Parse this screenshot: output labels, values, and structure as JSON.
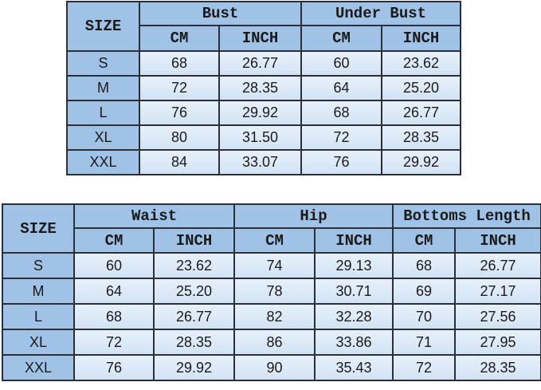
{
  "table1": {
    "size_label": "SIZE",
    "groups": [
      "Bust",
      "Under Bust"
    ],
    "units": [
      "CM",
      "INCH",
      "CM",
      "INCH"
    ],
    "rows": [
      {
        "size": "S",
        "values": [
          "68",
          "26.77",
          "60",
          "23.62"
        ]
      },
      {
        "size": "M",
        "values": [
          "72",
          "28.35",
          "64",
          "25.20"
        ]
      },
      {
        "size": "L",
        "values": [
          "76",
          "29.92",
          "68",
          "26.77"
        ]
      },
      {
        "size": "XL",
        "values": [
          "80",
          "31.50",
          "72",
          "28.35"
        ]
      },
      {
        "size": "XXL",
        "values": [
          "84",
          "33.07",
          "76",
          "29.92"
        ]
      }
    ]
  },
  "table2": {
    "size_label": "SIZE",
    "groups": [
      "Waist",
      "Hip",
      "Bottoms Length"
    ],
    "units": [
      "CM",
      "INCH",
      "CM",
      "INCH",
      "CM",
      "INCH"
    ],
    "rows": [
      {
        "size": "S",
        "values": [
          "60",
          "23.62",
          "74",
          "29.13",
          "68",
          "26.77"
        ]
      },
      {
        "size": "M",
        "values": [
          "64",
          "25.20",
          "78",
          "30.71",
          "69",
          "27.17"
        ]
      },
      {
        "size": "L",
        "values": [
          "68",
          "26.77",
          "82",
          "32.28",
          "70",
          "27.56"
        ]
      },
      {
        "size": "XL",
        "values": [
          "72",
          "28.35",
          "86",
          "33.86",
          "71",
          "27.95"
        ]
      },
      {
        "size": "XXL",
        "values": [
          "76",
          "29.92",
          "90",
          "35.43",
          "72",
          "28.35"
        ]
      }
    ]
  },
  "colors": {
    "header": "#9fc2e6",
    "cell": "#dce9f7",
    "border": "#2a2f38"
  }
}
